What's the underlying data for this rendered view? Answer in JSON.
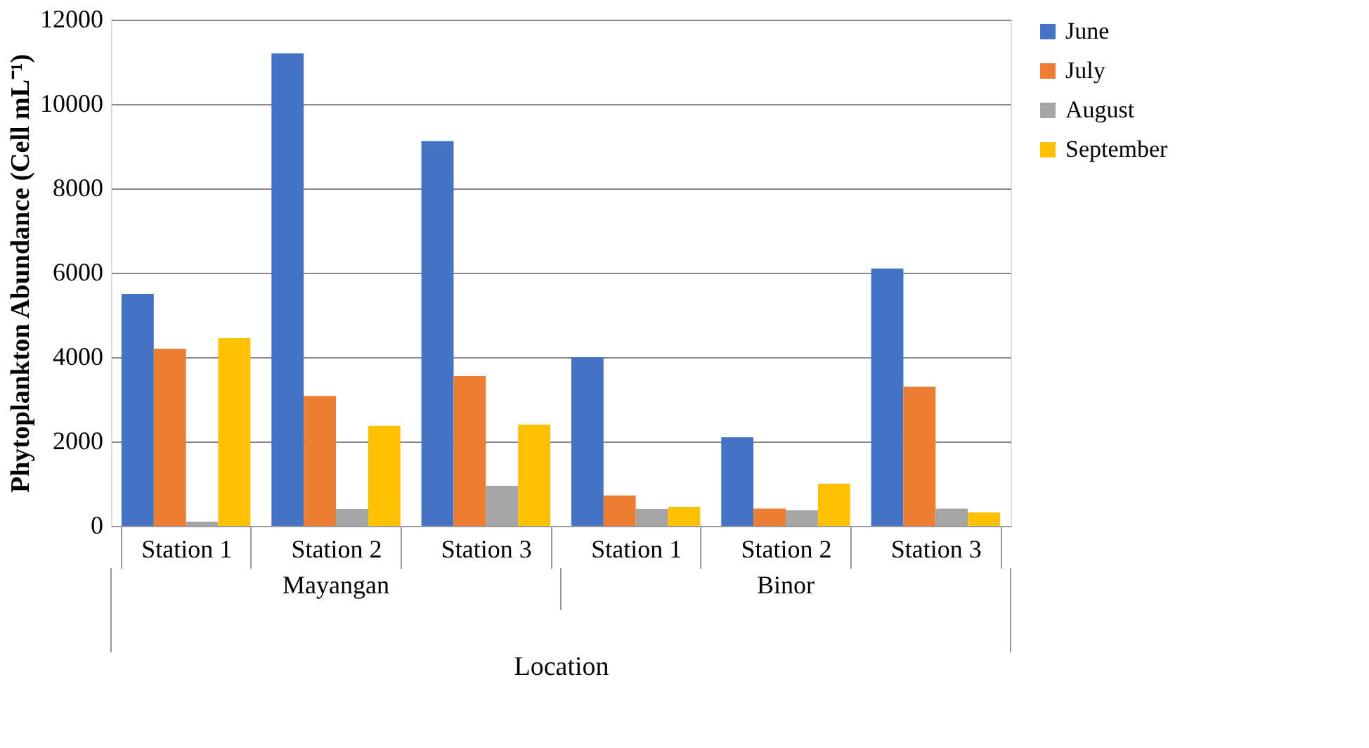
{
  "chart_data": {
    "type": "bar",
    "categories": [
      "Station 1",
      "Station 2",
      "Station 3",
      "Station 1",
      "Station 2",
      "Station 3"
    ],
    "series": [
      {
        "name": "June",
        "color": "#4472c4",
        "values": [
          5500,
          11200,
          9120,
          4000,
          2100,
          6100
        ]
      },
      {
        "name": "July",
        "color": "#ed7d31",
        "values": [
          4200,
          3080,
          3550,
          720,
          410,
          3300
        ]
      },
      {
        "name": "August",
        "color": "#a5a5a5",
        "values": [
          100,
          400,
          950,
          400,
          370,
          410
        ]
      },
      {
        "name": "September",
        "color": "#ffc000",
        "values": [
          4450,
          2370,
          2400,
          450,
          1000,
          320
        ]
      }
    ],
    "xlabel": "Location",
    "ylabel": "Phytoplankton Abundance (Cell mL⁻¹)",
    "annotations": [
      "Mayangan",
      "Binor"
    ],
    "ylim": [
      0,
      12000
    ],
    "yticks": [
      0,
      2000,
      4000,
      6000,
      8000,
      10000,
      12000
    ],
    "grid": "y",
    "legend": "right"
  }
}
